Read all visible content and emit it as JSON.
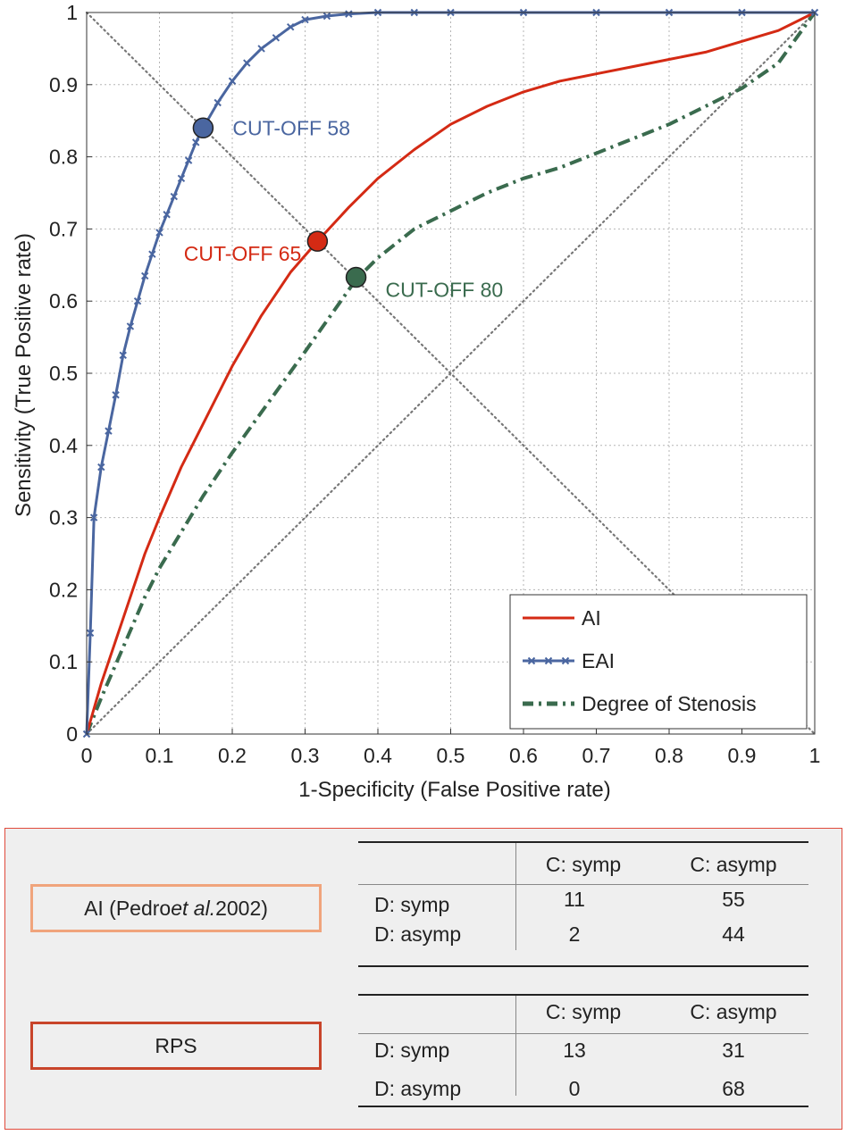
{
  "chart_data": {
    "type": "line",
    "xlabel": "1-Specificity (False Positive rate)",
    "ylabel": "Sensitivity (True Positive rate)",
    "xlim": [
      0,
      1
    ],
    "ylim": [
      0,
      1
    ],
    "xticks": [
      "0",
      "0.1",
      "0.2",
      "0.3",
      "0.4",
      "0.5",
      "0.6",
      "0.7",
      "0.8",
      "0.9",
      "1"
    ],
    "yticks": [
      "0",
      "0.1",
      "0.2",
      "0.3",
      "0.4",
      "0.5",
      "0.6",
      "0.7",
      "0.8",
      "0.9",
      "1"
    ],
    "grid": true,
    "legend_position": "bottom-right",
    "series": [
      {
        "name": "AI",
        "color": "#d42a14",
        "style": "solid",
        "x": [
          0,
          0.02,
          0.05,
          0.08,
          0.1,
          0.13,
          0.16,
          0.2,
          0.24,
          0.28,
          0.317,
          0.36,
          0.4,
          0.45,
          0.5,
          0.55,
          0.6,
          0.65,
          0.7,
          0.75,
          0.8,
          0.85,
          0.9,
          0.95,
          1.0
        ],
        "y": [
          0,
          0.07,
          0.16,
          0.25,
          0.3,
          0.37,
          0.43,
          0.51,
          0.58,
          0.64,
          0.683,
          0.73,
          0.77,
          0.81,
          0.845,
          0.87,
          0.89,
          0.905,
          0.915,
          0.925,
          0.935,
          0.945,
          0.96,
          0.975,
          1.0
        ]
      },
      {
        "name": "EAI",
        "color": "#4a66a0",
        "style": "solid-x-markers",
        "x": [
          0,
          0.005,
          0.01,
          0.02,
          0.03,
          0.04,
          0.05,
          0.06,
          0.07,
          0.08,
          0.09,
          0.1,
          0.11,
          0.12,
          0.13,
          0.14,
          0.15,
          0.16,
          0.18,
          0.2,
          0.22,
          0.24,
          0.26,
          0.28,
          0.3,
          0.33,
          0.36,
          0.4,
          0.45,
          0.5,
          0.6,
          0.7,
          0.8,
          0.9,
          1.0
        ],
        "y": [
          0,
          0.14,
          0.3,
          0.37,
          0.42,
          0.47,
          0.525,
          0.565,
          0.6,
          0.635,
          0.665,
          0.695,
          0.72,
          0.745,
          0.77,
          0.795,
          0.82,
          0.84,
          0.875,
          0.905,
          0.93,
          0.95,
          0.965,
          0.98,
          0.99,
          0.995,
          0.998,
          1.0,
          1.0,
          1.0,
          1.0,
          1.0,
          1.0,
          1.0,
          1.0
        ]
      },
      {
        "name": "Degree of Stenosis",
        "color": "#3a6b4e",
        "style": "dash-dot",
        "x": [
          0,
          0.02,
          0.05,
          0.08,
          0.1,
          0.13,
          0.16,
          0.2,
          0.25,
          0.3,
          0.37,
          0.4,
          0.45,
          0.5,
          0.55,
          0.6,
          0.65,
          0.7,
          0.75,
          0.8,
          0.85,
          0.9,
          0.95,
          1.0
        ],
        "y": [
          0,
          0.05,
          0.12,
          0.19,
          0.23,
          0.28,
          0.33,
          0.39,
          0.46,
          0.53,
          0.63,
          0.66,
          0.7,
          0.725,
          0.75,
          0.77,
          0.785,
          0.805,
          0.825,
          0.845,
          0.87,
          0.895,
          0.93,
          1.0
        ]
      }
    ],
    "reference_lines": [
      {
        "name": "chance-diagonal",
        "from": [
          0,
          0
        ],
        "to": [
          1,
          1
        ],
        "style": "dotted",
        "color": "#777777"
      },
      {
        "name": "cutoff-diagonal",
        "from": [
          0,
          1
        ],
        "to": [
          1,
          0
        ],
        "style": "dotted",
        "color": "#777777"
      }
    ],
    "annotations": [
      {
        "text": "CUT-OFF 58",
        "x": 0.16,
        "y": 0.84,
        "color": "#4a66a0",
        "label_side": "right"
      },
      {
        "text": "CUT-OFF 65",
        "x": 0.317,
        "y": 0.683,
        "color": "#d42a14",
        "label_side": "left"
      },
      {
        "text": "CUT-OFF 80",
        "x": 0.37,
        "y": 0.633,
        "color": "#3a6b4e",
        "label_side": "right"
      }
    ]
  },
  "tables": [
    {
      "method_label_prefix": "AI (Pedro ",
      "method_label_italic": "et al.",
      "method_label_suffix": " 2002)",
      "col_headers": [
        "C: symp",
        "C: asymp"
      ],
      "rows": [
        {
          "label": "D: symp",
          "values": [
            "11",
            "55"
          ]
        },
        {
          "label": "D: asymp",
          "values": [
            "2",
            "44"
          ]
        }
      ]
    },
    {
      "method_label": "RPS",
      "col_headers": [
        "C: symp",
        "C: asymp"
      ],
      "rows": [
        {
          "label": "D: symp",
          "values": [
            "13",
            "31"
          ]
        },
        {
          "label": "D: asymp",
          "values": [
            "0",
            "68"
          ]
        }
      ]
    }
  ]
}
